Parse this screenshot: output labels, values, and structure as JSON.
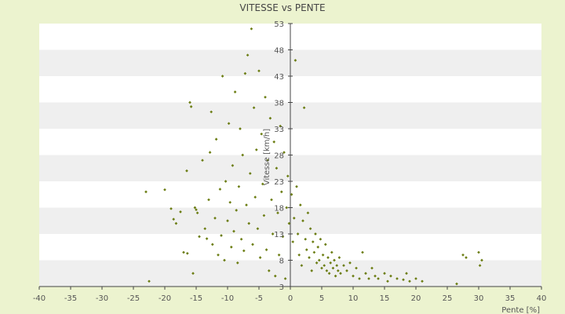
{
  "chart_data": {
    "type": "scatter",
    "title": "VITESSE vs PENTE",
    "xlabel": "Pente [%]",
    "ylabel": "Vitesse [km/h]",
    "xlim": [
      -40,
      40
    ],
    "ylim": [
      3,
      53
    ],
    "x_ticks": [
      "-40",
      "-35",
      "-30",
      "-25",
      "-20",
      "-15",
      "-10",
      "-5",
      "0",
      "5",
      "10",
      "15",
      "20",
      "25",
      "30",
      "35",
      "40"
    ],
    "y_ticks": [
      "3",
      "8",
      "13",
      "18",
      "23",
      "28",
      "33",
      "38",
      "43",
      "48",
      "53"
    ],
    "grid": "horizontal alternating bands",
    "legend": "none",
    "colors": {
      "page_background": "#ecf3cf",
      "band_light": "#ffffff",
      "band_dark": "#efefef",
      "marker": "#6b7d12",
      "axis": "#444444"
    },
    "points": [
      [
        -23.0,
        21.0
      ],
      [
        -22.5,
        4.0
      ],
      [
        -20.0,
        21.4
      ],
      [
        -19.0,
        17.8
      ],
      [
        -18.6,
        15.8
      ],
      [
        -18.2,
        15.0
      ],
      [
        -17.5,
        17.2
      ],
      [
        -17.0,
        9.5
      ],
      [
        -16.5,
        25.0
      ],
      [
        -16.4,
        9.3
      ],
      [
        -16.0,
        38.0
      ],
      [
        -15.8,
        37.2
      ],
      [
        -15.5,
        5.5
      ],
      [
        -15.2,
        18.0
      ],
      [
        -15.0,
        17.6
      ],
      [
        -14.8,
        17.0
      ],
      [
        -14.5,
        12.5
      ],
      [
        -14.0,
        27.0
      ],
      [
        -13.6,
        14.0
      ],
      [
        -13.3,
        12.1
      ],
      [
        -13.0,
        19.5
      ],
      [
        -12.8,
        28.5
      ],
      [
        -12.6,
        36.2
      ],
      [
        -12.4,
        11.0
      ],
      [
        -12.0,
        16.0
      ],
      [
        -11.8,
        31.0
      ],
      [
        -11.5,
        9.0
      ],
      [
        -11.2,
        21.5
      ],
      [
        -11.0,
        12.7
      ],
      [
        -10.8,
        43.0
      ],
      [
        -10.5,
        8.0
      ],
      [
        -10.3,
        23.0
      ],
      [
        -10.0,
        15.5
      ],
      [
        -9.8,
        34.0
      ],
      [
        -9.6,
        19.0
      ],
      [
        -9.4,
        10.5
      ],
      [
        -9.2,
        26.0
      ],
      [
        -9.0,
        13.5
      ],
      [
        -8.8,
        40.0
      ],
      [
        -8.6,
        17.5
      ],
      [
        -8.4,
        7.5
      ],
      [
        -8.2,
        22.0
      ],
      [
        -8.0,
        33.0
      ],
      [
        -7.8,
        12.0
      ],
      [
        -7.6,
        28.0
      ],
      [
        -7.4,
        9.8
      ],
      [
        -7.2,
        43.5
      ],
      [
        -7.0,
        18.5
      ],
      [
        -6.8,
        47.0
      ],
      [
        -6.6,
        15.0
      ],
      [
        -6.4,
        24.5
      ],
      [
        -6.2,
        52.0
      ],
      [
        -6.0,
        11.0
      ],
      [
        -5.8,
        37.0
      ],
      [
        -5.6,
        20.0
      ],
      [
        -5.4,
        29.0
      ],
      [
        -5.2,
        14.0
      ],
      [
        -5.0,
        44.0
      ],
      [
        -4.8,
        8.5
      ],
      [
        -4.6,
        32.0
      ],
      [
        -4.4,
        22.5
      ],
      [
        -4.2,
        16.5
      ],
      [
        -4.0,
        39.0
      ],
      [
        -3.8,
        10.0
      ],
      [
        -3.6,
        27.0
      ],
      [
        -3.4,
        6.0
      ],
      [
        -3.2,
        35.0
      ],
      [
        -3.0,
        19.5
      ],
      [
        -2.8,
        13.0
      ],
      [
        -2.6,
        30.5
      ],
      [
        -2.4,
        5.0
      ],
      [
        -2.2,
        25.5
      ],
      [
        -2.0,
        17.0
      ],
      [
        -1.8,
        9.0
      ],
      [
        -1.6,
        33.5
      ],
      [
        -1.4,
        21.0
      ],
      [
        -1.2,
        12.5
      ],
      [
        -1.0,
        28.5
      ],
      [
        -0.8,
        4.5
      ],
      [
        -0.6,
        18.0
      ],
      [
        -0.4,
        24.0
      ],
      [
        -0.2,
        15.0
      ],
      [
        0.2,
        20.5
      ],
      [
        0.4,
        11.5
      ],
      [
        0.6,
        16.0
      ],
      [
        0.8,
        46.0
      ],
      [
        1.0,
        22.0
      ],
      [
        1.2,
        13.0
      ],
      [
        1.4,
        9.0
      ],
      [
        1.6,
        18.5
      ],
      [
        1.8,
        7.0
      ],
      [
        2.0,
        15.5
      ],
      [
        2.2,
        37.0
      ],
      [
        2.4,
        12.0
      ],
      [
        2.6,
        10.0
      ],
      [
        2.8,
        17.0
      ],
      [
        3.0,
        8.5
      ],
      [
        3.2,
        14.0
      ],
      [
        3.4,
        6.0
      ],
      [
        3.6,
        11.5
      ],
      [
        3.8,
        9.5
      ],
      [
        4.0,
        13.0
      ],
      [
        4.2,
        7.5
      ],
      [
        4.4,
        10.5
      ],
      [
        4.6,
        8.0
      ],
      [
        4.8,
        12.0
      ],
      [
        5.0,
        6.5
      ],
      [
        5.2,
        9.0
      ],
      [
        5.4,
        7.0
      ],
      [
        5.6,
        11.0
      ],
      [
        5.8,
        6.0
      ],
      [
        6.0,
        8.5
      ],
      [
        6.2,
        5.5
      ],
      [
        6.4,
        7.5
      ],
      [
        6.6,
        9.5
      ],
      [
        6.8,
        6.5
      ],
      [
        7.0,
        8.0
      ],
      [
        7.2,
        5.0
      ],
      [
        7.4,
        7.0
      ],
      [
        7.6,
        6.0
      ],
      [
        7.8,
        8.5
      ],
      [
        8.0,
        5.5
      ],
      [
        8.5,
        7.0
      ],
      [
        9.0,
        6.0
      ],
      [
        9.5,
        7.5
      ],
      [
        10.0,
        5.0
      ],
      [
        10.5,
        6.5
      ],
      [
        11.0,
        4.5
      ],
      [
        11.5,
        9.5
      ],
      [
        12.0,
        5.5
      ],
      [
        12.5,
        4.5
      ],
      [
        13.0,
        6.5
      ],
      [
        13.5,
        5.0
      ],
      [
        14.0,
        4.5
      ],
      [
        15.0,
        5.5
      ],
      [
        15.5,
        4.0
      ],
      [
        16.0,
        5.0
      ],
      [
        17.0,
        4.5
      ],
      [
        18.0,
        4.3
      ],
      [
        18.5,
        5.5
      ],
      [
        19.0,
        4.0
      ],
      [
        20.0,
        4.5
      ],
      [
        21.0,
        4.0
      ],
      [
        26.5,
        3.5
      ],
      [
        27.5,
        9.0
      ],
      [
        28.0,
        8.5
      ],
      [
        30.0,
        9.5
      ],
      [
        30.5,
        8.0
      ],
      [
        30.2,
        7.0
      ]
    ]
  }
}
